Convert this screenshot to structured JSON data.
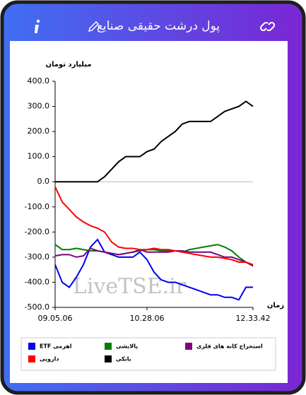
{
  "chart_data": {
    "type": "line",
    "title": "پول درشت حقیقی صنایع",
    "y_label": "میلیارد تومان",
    "x_label": "زمان",
    "watermark": "LiveTSE.ir",
    "categories": [
      "09.05.06",
      null,
      null,
      null,
      null,
      null,
      null,
      null,
      null,
      null,
      null,
      null,
      null,
      "10.28.06",
      null,
      null,
      null,
      null,
      null,
      null,
      null,
      null,
      null,
      null,
      null,
      null,
      null,
      null,
      "12.33.42"
    ],
    "series": [
      {
        "name": "ETF اهرمی",
        "color": "#0000ee",
        "values": [
          -330,
          -400,
          -420,
          -380,
          -330,
          -260,
          -230,
          -280,
          -290,
          -300,
          -300,
          -300,
          -280,
          -310,
          -360,
          -390,
          -400,
          -400,
          -410,
          -420,
          -430,
          -440,
          -450,
          -450,
          -460,
          -460,
          -470,
          -420,
          -420
        ]
      },
      {
        "name": "پالایشی",
        "color": "#008000",
        "values": [
          -250,
          -270,
          -270,
          -265,
          -270,
          -275,
          -275,
          -280,
          -285,
          -290,
          -285,
          -280,
          -275,
          -270,
          -270,
          -275,
          -275,
          -275,
          -280,
          -270,
          -265,
          -260,
          -255,
          -250,
          -260,
          -275,
          -300,
          -320,
          -335
        ]
      },
      {
        "name": "استخراج کانه های فلزی",
        "color": "#800080",
        "values": [
          -295,
          -290,
          -290,
          -300,
          -295,
          -265,
          -275,
          -280,
          -285,
          -290,
          -285,
          -280,
          -270,
          -280,
          -280,
          -280,
          -280,
          -275,
          -275,
          -280,
          -280,
          -280,
          -280,
          -290,
          -300,
          -300,
          -310,
          -320,
          -335
        ]
      },
      {
        "name": "دارویی",
        "color": "#ff0000",
        "values": [
          -20,
          -80,
          -110,
          -140,
          -160,
          -175,
          -185,
          -200,
          -240,
          -260,
          -265,
          -265,
          -270,
          -270,
          -265,
          -270,
          -270,
          -275,
          -280,
          -285,
          -290,
          -295,
          -300,
          -300,
          -305,
          -310,
          -320,
          -320,
          -330
        ]
      },
      {
        "name": "بانکی",
        "color": "#000000",
        "values": [
          0,
          0,
          0,
          0,
          0,
          0,
          0,
          20,
          50,
          80,
          100,
          100,
          100,
          120,
          130,
          160,
          180,
          200,
          230,
          240,
          240,
          240,
          240,
          260,
          280,
          290,
          300,
          320,
          300
        ]
      }
    ],
    "ylim": [
      -500,
      400
    ],
    "yticks": [
      {
        "value": -500,
        "label": "-500.0"
      },
      {
        "value": -400,
        "label": "-400.0"
      },
      {
        "value": -300,
        "label": "-300.0"
      },
      {
        "value": -200,
        "label": "-200.0"
      },
      {
        "value": -100,
        "label": "-100.0"
      },
      {
        "value": 0,
        "label": "0.0"
      },
      {
        "value": 100,
        "label": "100.0"
      },
      {
        "value": 200,
        "label": "200.0"
      },
      {
        "value": 300,
        "label": "300.0"
      },
      {
        "value": 400,
        "label": "400.0"
      }
    ],
    "zero_line": true
  }
}
